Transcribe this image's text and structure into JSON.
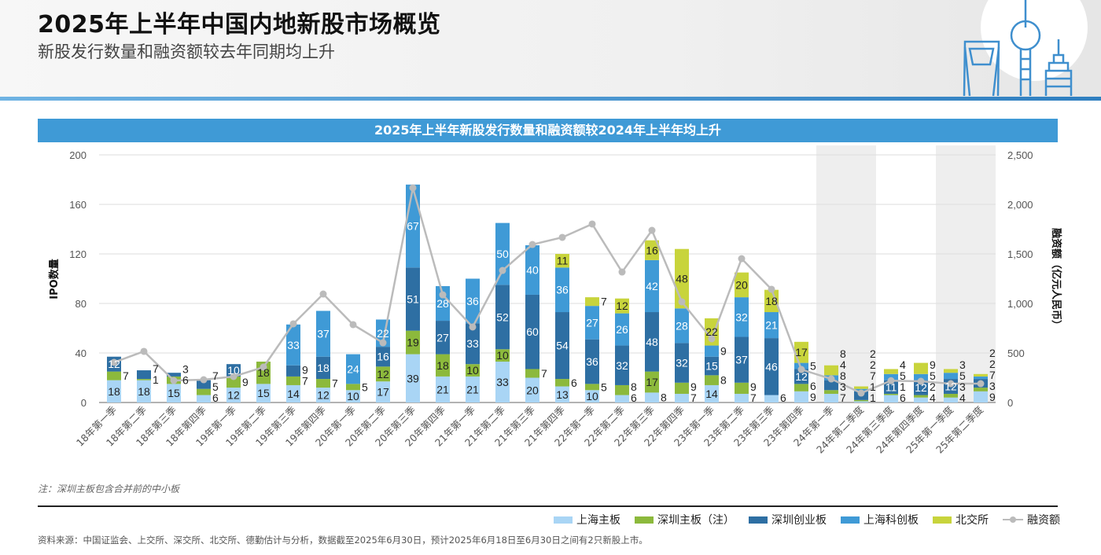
{
  "header": {
    "title": "2025年上半年中国内地新股市场概览",
    "subtitle": "新股发行数量和融资额较去年同期均上升"
  },
  "footer": {
    "note": "注：深圳主板包含合并前的中小板",
    "source": "资料来源：中国证监会、上交所、深交所、北交所、德勤估计与分析，数据截至2025年6月30日，预计2025年6月18日至6月30日之间有2只新股上市。"
  },
  "colors": {
    "accent": "#3f9ad6",
    "sh_main": "#a9d5f5",
    "sz_main": "#8cb93c",
    "chinext": "#2e6fa3",
    "star": "#3f9ad6",
    "bse": "#c8d43c",
    "proceeds": "#bbbbbb",
    "highlight_band": "#eeeeee"
  },
  "chart_data": {
    "type": "bar",
    "stacked": true,
    "title": "2025年上半年新股发行数量和融资额较2024年上半年均上升",
    "ylabel": "IPO数量",
    "y2label": "融资额（亿元人民币）",
    "ylim": [
      0,
      200
    ],
    "yticks": [
      "0",
      "40",
      "80",
      "120",
      "160",
      "200"
    ],
    "y2lim": [
      0,
      2500
    ],
    "y2ticks": [
      "0",
      "500",
      "1,000",
      "1,500",
      "2,000",
      "2,500"
    ],
    "grid": true,
    "legend": "bottom-right",
    "highlighted_periods": [
      "24年第一季",
      "24年第二季度",
      "25年第一季度",
      "25年第二季度"
    ],
    "categories": [
      "18年第一季",
      "18年第二季",
      "18年第三季",
      "18年第四季",
      "19年第一季",
      "19年第二季",
      "19年第三季",
      "19年第四季",
      "20年第一季",
      "20年第二季",
      "20年第三季",
      "20年第四季",
      "21年第一季",
      "21年第二季",
      "21年第三季",
      "21年第四季",
      "22年第一季",
      "22年第二季",
      "22年第三季",
      "22年第四季",
      "23年第一季",
      "23年第二季",
      "23年第三季",
      "23年第四季",
      "24年第一季",
      "24年第二季度",
      "24年第三季度",
      "24年第四季度",
      "25年第一季度",
      "25年第二季度"
    ],
    "series": [
      {
        "name": "上海主板",
        "type": "bar",
        "values": [
          18,
          18,
          15,
          6,
          12,
          15,
          14,
          12,
          10,
          17,
          39,
          21,
          21,
          33,
          20,
          13,
          10,
          6,
          8,
          7,
          14,
          7,
          6,
          9,
          7,
          1,
          6,
          4,
          4,
          9
        ]
      },
      {
        "name": "深圳主板（注）",
        "type": "bar",
        "values": [
          7,
          1,
          6,
          5,
          9,
          18,
          7,
          7,
          5,
          12,
          19,
          18,
          10,
          10,
          7,
          6,
          5,
          8,
          17,
          9,
          8,
          9,
          0,
          6,
          3,
          1,
          1,
          2,
          3,
          3
        ]
      },
      {
        "name": "深圳创业板",
        "type": "bar",
        "values": [
          12,
          7,
          3,
          7,
          10,
          0,
          9,
          18,
          0,
          16,
          51,
          27,
          33,
          52,
          60,
          54,
          36,
          32,
          48,
          32,
          15,
          37,
          46,
          12,
          8,
          7,
          11,
          12,
          12,
          7
        ]
      },
      {
        "name": "上海科创板",
        "type": "bar",
        "values": [
          0,
          0,
          0,
          0,
          0,
          0,
          33,
          37,
          24,
          22,
          67,
          28,
          36,
          50,
          40,
          36,
          27,
          26,
          42,
          28,
          9,
          32,
          21,
          5,
          4,
          2,
          5,
          5,
          5,
          2
        ]
      },
      {
        "name": "北交所",
        "type": "bar",
        "values": [
          0,
          0,
          0,
          0,
          0,
          0,
          0,
          0,
          0,
          0,
          0,
          0,
          0,
          0,
          0,
          11,
          7,
          12,
          16,
          48,
          22,
          20,
          18,
          17,
          8,
          2,
          4,
          9,
          3,
          2
        ]
      },
      {
        "name": "融资额",
        "type": "line",
        "axis": "right",
        "values": [
          405,
          516,
          222,
          230,
          262,
          357,
          794,
          1095,
          786,
          603,
          2167,
          1087,
          762,
          1333,
          1595,
          1667,
          1802,
          1317,
          1738,
          1016,
          643,
          1452,
          1143,
          333,
          238,
          95,
          220,
          214,
          190,
          190
        ]
      }
    ]
  }
}
